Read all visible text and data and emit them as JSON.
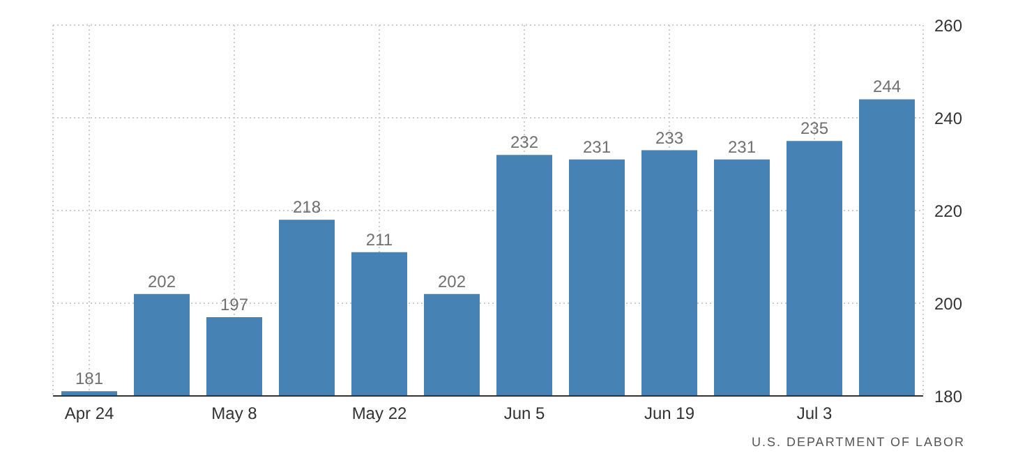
{
  "chart_data": {
    "type": "bar",
    "categories": [
      "Apr 24",
      null,
      "May 8",
      null,
      "May 22",
      null,
      "Jun 5",
      null,
      "Jun 19",
      null,
      "Jul 3",
      null
    ],
    "values": [
      181,
      202,
      197,
      218,
      211,
      202,
      232,
      231,
      233,
      231,
      235,
      244
    ],
    "color": "#4682b4",
    "ylim": [
      180,
      260
    ],
    "yticks": [
      180,
      200,
      220,
      240,
      260
    ],
    "grid": true,
    "data_labels": true,
    "annotations": [
      "U.S. DEPARTMENT OF LABOR"
    ]
  }
}
